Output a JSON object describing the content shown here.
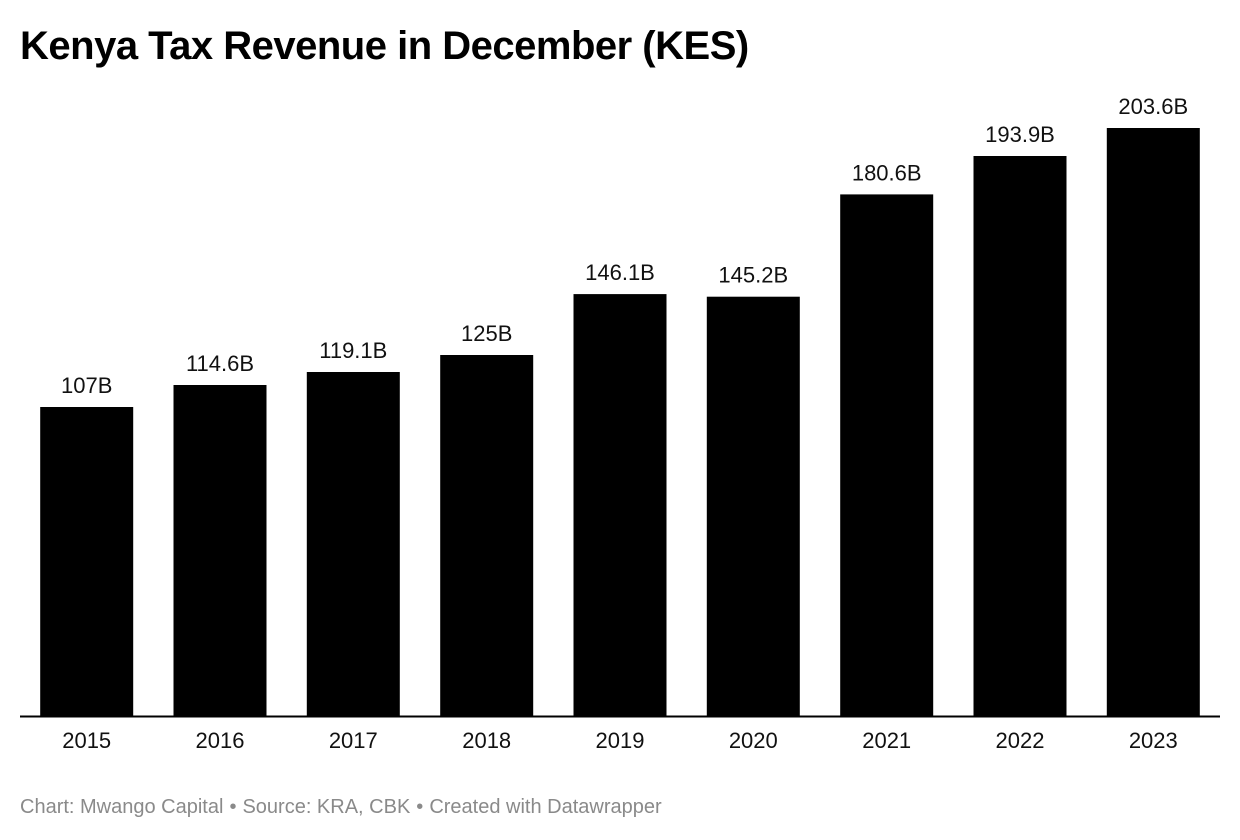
{
  "title": "Kenya Tax Revenue in December (KES)",
  "footer": {
    "chart_credit": "Chart: Mwango Capital",
    "source": "Source: KRA, CBK",
    "created_with": "Created with Datawrapper",
    "separator": "•"
  },
  "colors": {
    "bar": "#000000",
    "axis": "#000000",
    "footer_text": "#8a8a8a",
    "background": "#ffffff"
  },
  "chart_data": {
    "type": "bar",
    "title": "Kenya Tax Revenue in December (KES)",
    "xlabel": "",
    "ylabel": "",
    "categories": [
      "2015",
      "2016",
      "2017",
      "2018",
      "2019",
      "2020",
      "2021",
      "2022",
      "2023"
    ],
    "values": [
      107,
      114.6,
      119.1,
      125,
      146.1,
      145.2,
      180.6,
      193.9,
      203.6
    ],
    "data_labels": [
      "107B",
      "114.6B",
      "119.1B",
      "125B",
      "146.1B",
      "145.2B",
      "180.6B",
      "193.9B",
      "203.6B"
    ],
    "unit": "B",
    "ylim": [
      0,
      203.6
    ],
    "grid": false,
    "legend": "none"
  }
}
